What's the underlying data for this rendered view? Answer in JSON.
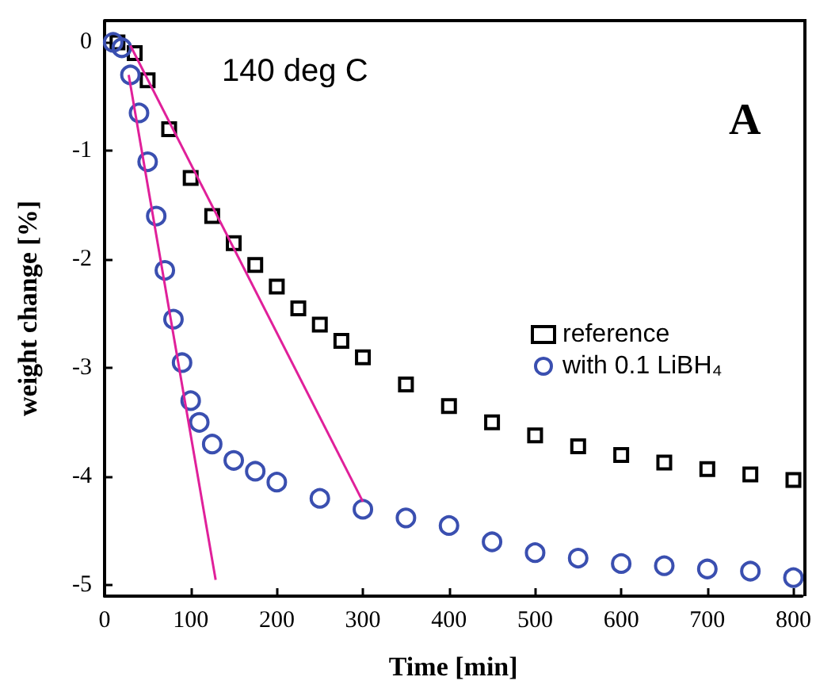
{
  "chart_data": {
    "type": "scatter",
    "xlabel": "Time [min]",
    "ylabel": "weight change [%]",
    "annotations": [
      "140 deg C",
      "A"
    ],
    "xlim": [
      0,
      810
    ],
    "ylim": [
      -5.1,
      0.2
    ],
    "xticks": [
      0,
      100,
      200,
      300,
      400,
      500,
      600,
      700,
      800
    ],
    "yticks": [
      -5,
      -4,
      -3,
      -2,
      -1,
      0
    ],
    "grid": false,
    "legend": "right",
    "series": [
      {
        "name": "reference",
        "color": "#000000",
        "marker": "square",
        "x": [
          15,
          35,
          50,
          75,
          100,
          125,
          150,
          175,
          200,
          225,
          250,
          275,
          300,
          350,
          400,
          450,
          500,
          550,
          600,
          650,
          700,
          750,
          800
        ],
        "values": [
          0,
          -0.1,
          -0.35,
          -0.8,
          -1.25,
          -1.6,
          -1.85,
          -2.05,
          -2.25,
          -2.45,
          -2.6,
          -2.75,
          -2.9,
          -3.15,
          -3.35,
          -3.5,
          -3.62,
          -3.72,
          -3.8,
          -3.87,
          -3.93,
          -3.98,
          -4.03
        ]
      },
      {
        "name": "with 0.1 LiBH₄",
        "color": "#3a4fb0",
        "marker": "circle",
        "x": [
          10,
          20,
          30,
          40,
          50,
          60,
          70,
          80,
          90,
          100,
          110,
          125,
          150,
          175,
          200,
          250,
          300,
          350,
          400,
          450,
          500,
          550,
          600,
          650,
          700,
          750,
          800
        ],
        "values": [
          0,
          -0.05,
          -0.3,
          -0.65,
          -1.1,
          -1.6,
          -2.1,
          -2.55,
          -2.95,
          -3.3,
          -3.5,
          -3.7,
          -3.85,
          -3.95,
          -4.05,
          -4.2,
          -4.3,
          -4.38,
          -4.45,
          -4.6,
          -4.7,
          -4.75,
          -4.8,
          -4.82,
          -4.85,
          -4.87,
          -4.93
        ]
      },
      {
        "type": "line",
        "color": "#e0209a",
        "marker": "none",
        "x": [
          28,
          129
        ],
        "values": [
          -0.3,
          -4.95
        ]
      },
      {
        "type": "line",
        "color": "#e0209a",
        "marker": "none",
        "x": [
          30,
          300
        ],
        "values": [
          -0.03,
          -4.23
        ]
      }
    ]
  }
}
